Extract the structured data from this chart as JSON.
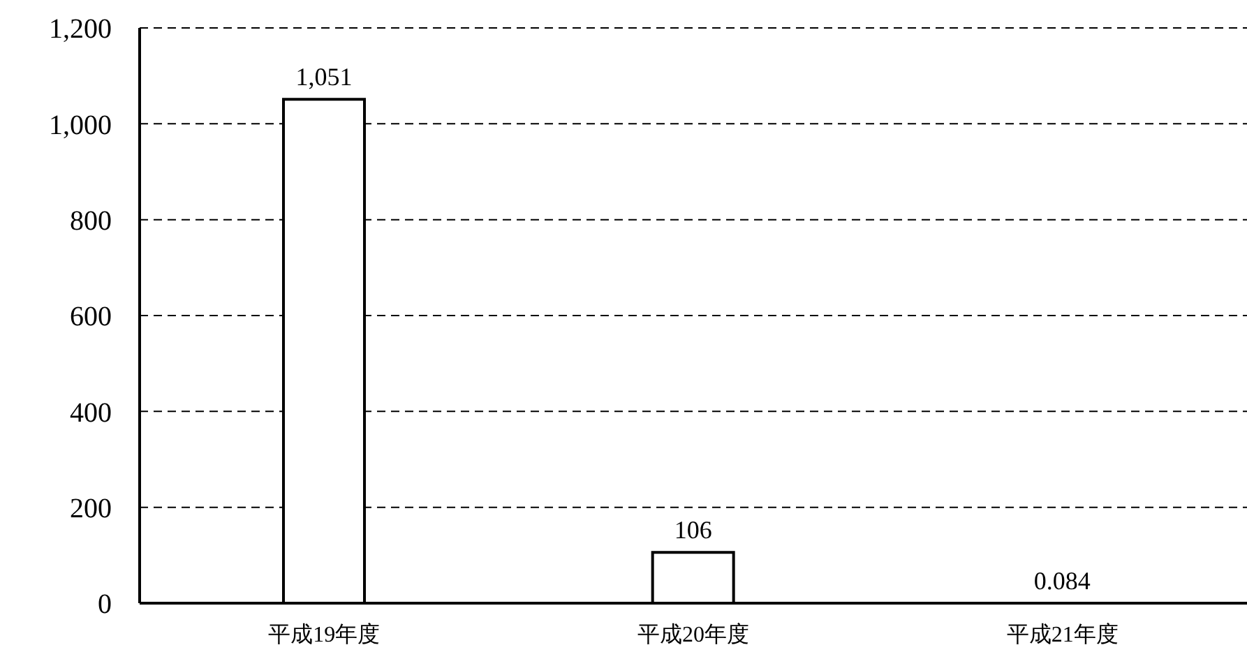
{
  "chart_data": {
    "type": "bar",
    "categories": [
      "平成19年度",
      "平成20年度",
      "平成21年度"
    ],
    "values": [
      1051,
      106,
      0.084
    ],
    "value_labels": [
      "1,051",
      "106",
      "0.084"
    ],
    "color": "#ffffff",
    "ylim": [
      0,
      1200
    ],
    "yticks": [
      {
        "value": 0,
        "label": "0"
      },
      {
        "value": 200,
        "label": "200"
      },
      {
        "value": 400,
        "label": "400"
      },
      {
        "value": 600,
        "label": "600"
      },
      {
        "value": 800,
        "label": "800"
      },
      {
        "value": 1000,
        "label": "1,000"
      },
      {
        "value": 1200,
        "label": "1,200"
      }
    ],
    "grid": "y"
  }
}
